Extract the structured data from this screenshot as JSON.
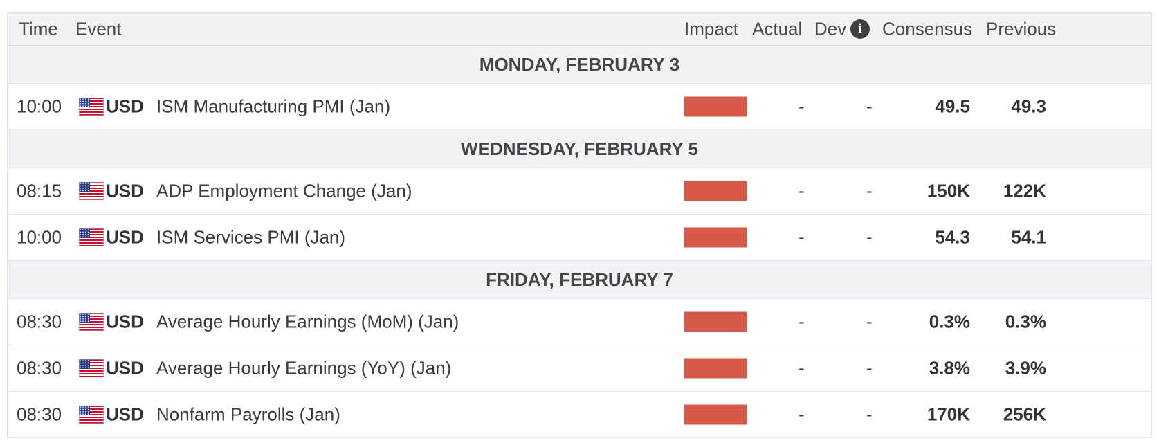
{
  "header": {
    "time": "Time",
    "event": "Event",
    "impact": "Impact",
    "actual": "Actual",
    "dev": "Dev",
    "info_icon": "i",
    "consensus": "Consensus",
    "previous": "Previous"
  },
  "colors": {
    "impact_high": "#d55a48"
  },
  "groups": [
    {
      "day": "MONDAY, FEBRUARY 3",
      "rows": [
        {
          "time": "10:00",
          "currency": "USD",
          "event": "ISM Manufacturing PMI (Jan)",
          "actual": "-",
          "dev": "-",
          "consensus": "49.5",
          "previous": "49.3"
        }
      ]
    },
    {
      "day": "WEDNESDAY, FEBRUARY 5",
      "rows": [
        {
          "time": "08:15",
          "currency": "USD",
          "event": "ADP Employment Change (Jan)",
          "actual": "-",
          "dev": "-",
          "consensus": "150K",
          "previous": "122K"
        },
        {
          "time": "10:00",
          "currency": "USD",
          "event": "ISM Services PMI (Jan)",
          "actual": "-",
          "dev": "-",
          "consensus": "54.3",
          "previous": "54.1"
        }
      ]
    },
    {
      "day": "FRIDAY, FEBRUARY 7",
      "rows": [
        {
          "time": "08:30",
          "currency": "USD",
          "event": "Average Hourly Earnings (MoM) (Jan)",
          "actual": "-",
          "dev": "-",
          "consensus": "0.3%",
          "previous": "0.3%"
        },
        {
          "time": "08:30",
          "currency": "USD",
          "event": "Average Hourly Earnings (YoY) (Jan)",
          "actual": "-",
          "dev": "-",
          "consensus": "3.8%",
          "previous": "3.9%"
        },
        {
          "time": "08:30",
          "currency": "USD",
          "event": "Nonfarm Payrolls (Jan)",
          "actual": "-",
          "dev": "-",
          "consensus": "170K",
          "previous": "256K"
        }
      ]
    }
  ]
}
